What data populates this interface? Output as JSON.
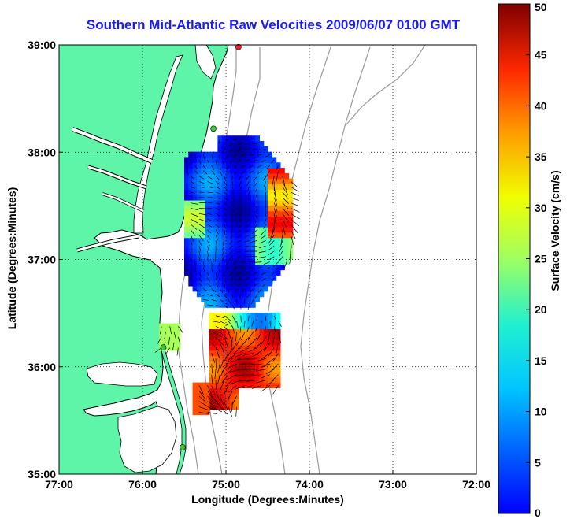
{
  "title": "Southern Mid-Atlantic Raw Velocities 2009/06/07 0100 GMT",
  "xlabel": "Longitude (Degrees:Minutes)",
  "ylabel": "Latitude (Degrees:Minutes)",
  "colorbar_label": "Surface Velocity (cm/s)",
  "colors": {
    "land": "#5ef5a8",
    "coastline": "#000000",
    "bathymetry": "#9a9a9a",
    "grid": "#000000",
    "station_green": "#33cc33",
    "station_red": "#ff2020",
    "title_blue": "#1a1aff"
  },
  "colormap": "jet",
  "chart_data": {
    "type": "map",
    "xlim": [
      -77,
      -72
    ],
    "ylim": [
      35,
      39
    ],
    "x_ticks": [
      {
        "value": -77,
        "label": "77:00"
      },
      {
        "value": -76,
        "label": "76:00"
      },
      {
        "value": -75,
        "label": "75:00"
      },
      {
        "value": -74,
        "label": "74:00"
      },
      {
        "value": -73,
        "label": "73:00"
      },
      {
        "value": -72,
        "label": "72:00"
      }
    ],
    "y_ticks": [
      {
        "value": 35,
        "label": "35:00"
      },
      {
        "value": 36,
        "label": "36:00"
      },
      {
        "value": 37,
        "label": "37:00"
      },
      {
        "value": 38,
        "label": "38:00"
      },
      {
        "value": 39,
        "label": "39:00"
      }
    ],
    "grid": "dotted",
    "colorbar": {
      "min": 0,
      "max": 50,
      "ticks": [
        0,
        5,
        10,
        15,
        20,
        25,
        30,
        35,
        40,
        45,
        50
      ]
    },
    "stations": [
      {
        "lon": -74.85,
        "lat": 38.98,
        "color": "red"
      },
      {
        "lon": -75.15,
        "lat": 38.22,
        "color": "green"
      },
      {
        "lon": -75.75,
        "lat": 36.18,
        "color": "green"
      },
      {
        "lon": -75.52,
        "lat": 35.25,
        "color": "green"
      }
    ],
    "velocity_regions": [
      {
        "name": "northern-field",
        "lon_range": [
          -75.5,
          -74.25
        ],
        "lat_range": [
          36.55,
          38.1
        ]
      },
      {
        "name": "southern-field",
        "lon_range": [
          -75.75,
          -74.35
        ],
        "lat_range": [
          35.55,
          36.45
        ]
      }
    ]
  }
}
